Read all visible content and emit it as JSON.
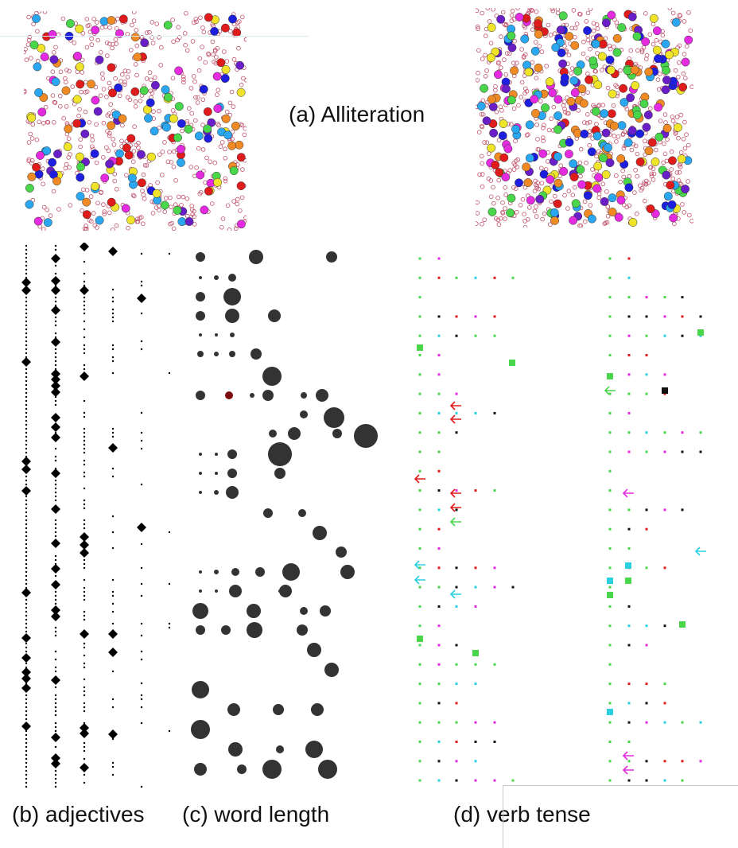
{
  "captions": {
    "alliteration": "(a) Alliteration",
    "adjectives": "(b) adjectives",
    "word_length": "(c) word length",
    "verb_tense": "(d) verb tense"
  },
  "colors": {
    "outline_dot": "#c0506a",
    "palette": [
      "#e01b1b",
      "#1e1ee0",
      "#6a1ec8",
      "#2aa7f0",
      "#49d64a",
      "#f0e42a",
      "#e52be0",
      "#f08a24"
    ],
    "bubble": "#333333",
    "bubble_highlight": "#7a0c0c",
    "tense_black": "#111111",
    "tense_green": "#49d64a",
    "tense_magenta": "#e52be0",
    "tense_red": "#e01b1b",
    "tense_cyan": "#2ad0e0",
    "tense_yellow": "#f0c82a"
  }
}
